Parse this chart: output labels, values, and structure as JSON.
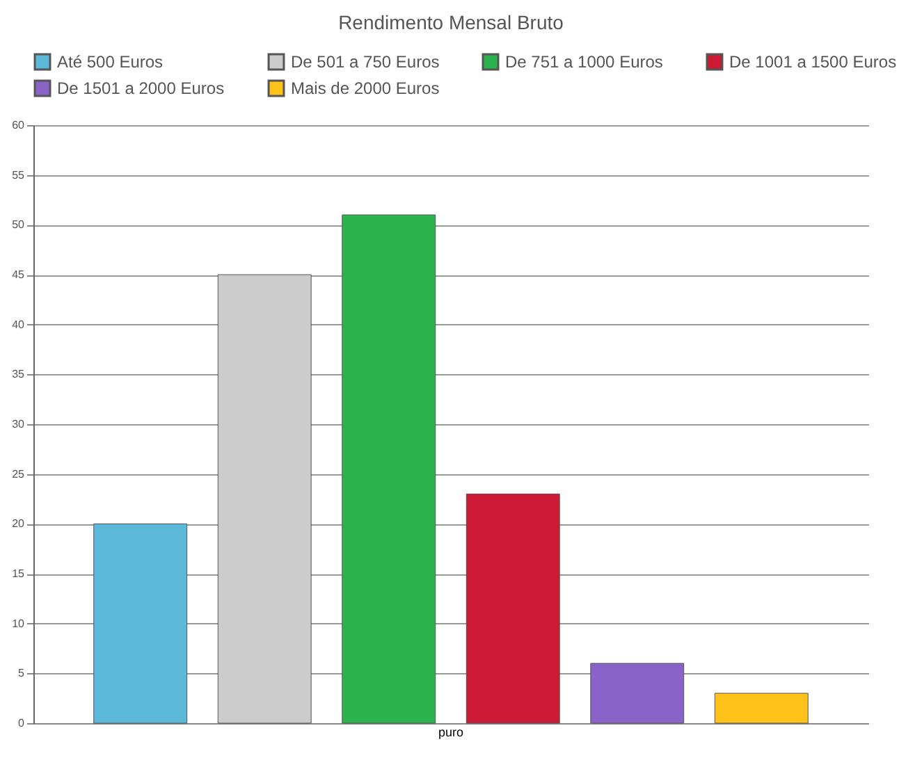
{
  "chart_data": {
    "type": "bar",
    "title": "Rendimento Mensal Bruto",
    "categories": [
      "puro"
    ],
    "series": [
      {
        "name": "Até 500 Euros",
        "color": "#5bb8d8",
        "values": [
          20
        ]
      },
      {
        "name": "De 501 a 750 Euros",
        "color": "#cccccc",
        "values": [
          45
        ]
      },
      {
        "name": "De 751 a 1000 Euros",
        "color": "#2db34e",
        "values": [
          51
        ]
      },
      {
        "name": "De 1001 a 1500 Euros",
        "color": "#cc1a36",
        "values": [
          23
        ]
      },
      {
        "name": "De 1501 a 2000 Euros",
        "color": "#8a63c9",
        "values": [
          6
        ]
      },
      {
        "name": "Mais de 2000 Euros",
        "color": "#ffc21a",
        "values": [
          3
        ]
      }
    ],
    "ylim": [
      0,
      60
    ],
    "yticks": [
      0,
      5,
      10,
      15,
      20,
      25,
      30,
      35,
      40,
      45,
      50,
      55,
      60
    ],
    "grid": "y",
    "legend": "top"
  }
}
